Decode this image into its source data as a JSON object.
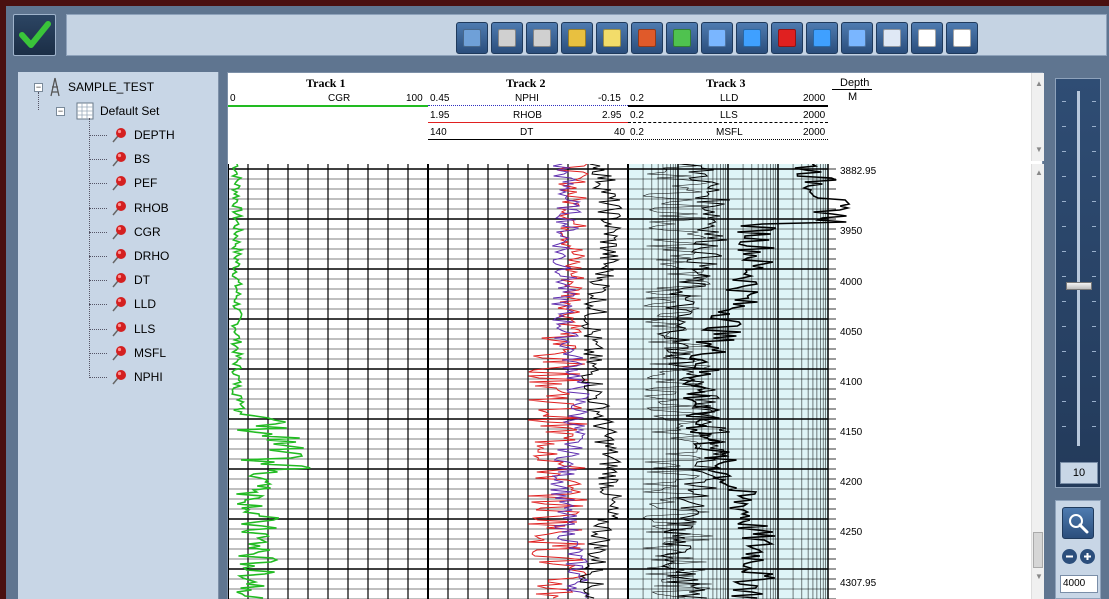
{
  "toolbar": {
    "ok_icon": "checkmark-icon",
    "buttons": [
      {
        "name": "save-icon",
        "color": "#6fa0d8"
      },
      {
        "name": "print-icon",
        "color": "#d0d0d0"
      },
      {
        "name": "print-preview-icon",
        "color": "#d0d0d0"
      },
      {
        "name": "clear-icon",
        "color": "#e8c040"
      },
      {
        "name": "edit-header-icon",
        "color": "#f2dc6a"
      },
      {
        "name": "add-shading-icon",
        "color": "#e05a2a"
      },
      {
        "name": "area-fill-icon",
        "color": "#4fc24f"
      },
      {
        "name": "add-curve-icon",
        "color": "#7ab6ff"
      },
      {
        "name": "add-track-icon",
        "color": "#3fa0ff"
      },
      {
        "name": "delete-icon",
        "color": "#e02020"
      },
      {
        "name": "insert-track-icon",
        "color": "#3fa0ff"
      },
      {
        "name": "curve-settings-icon",
        "color": "#7ab6ff"
      },
      {
        "name": "grid-icon",
        "color": "#dfe8f5"
      },
      {
        "name": "fit-vertical-icon",
        "color": "#ffffff"
      },
      {
        "name": "fit-horizontal-icon",
        "color": "#ffffff"
      }
    ]
  },
  "tree": {
    "root": "SAMPLE_TEST",
    "set": "Default Set",
    "curves": [
      "DEPTH",
      "BS",
      "PEF",
      "RHOB",
      "CGR",
      "DRHO",
      "DT",
      "LLD",
      "LLS",
      "MSFL",
      "NPHI"
    ]
  },
  "header": {
    "track1": {
      "title": "Track 1",
      "curves": [
        {
          "name": "CGR",
          "min": "0",
          "max": "100",
          "color": "#22bb22"
        }
      ]
    },
    "track2": {
      "title": "Track 2",
      "curves": [
        {
          "name": "NPHI",
          "min": "0.45",
          "max": "-0.15",
          "color": "#3030c0"
        },
        {
          "name": "RHOB",
          "min": "1.95",
          "max": "2.95",
          "color": "#e02020"
        },
        {
          "name": "DT",
          "min": "140",
          "max": "40",
          "color": "#000000"
        }
      ]
    },
    "track3": {
      "title": "Track 3",
      "curves": [
        {
          "name": "LLD",
          "min": "0.2",
          "max": "2000",
          "color": "#000000"
        },
        {
          "name": "LLS",
          "min": "0.2",
          "max": "2000",
          "color": "#000000"
        },
        {
          "name": "MSFL",
          "min": "0.2",
          "max": "2000",
          "color": "#000000"
        }
      ]
    },
    "depth": {
      "title": "Depth",
      "unit": "M"
    }
  },
  "depth_labels": [
    "3882.95",
    "3950",
    "4000",
    "4050",
    "4100",
    "4150",
    "4200",
    "4250",
    "4307.95"
  ],
  "slider": {
    "value": "10",
    "level": 0.55
  },
  "zoom": {
    "input_value": "4000"
  }
}
